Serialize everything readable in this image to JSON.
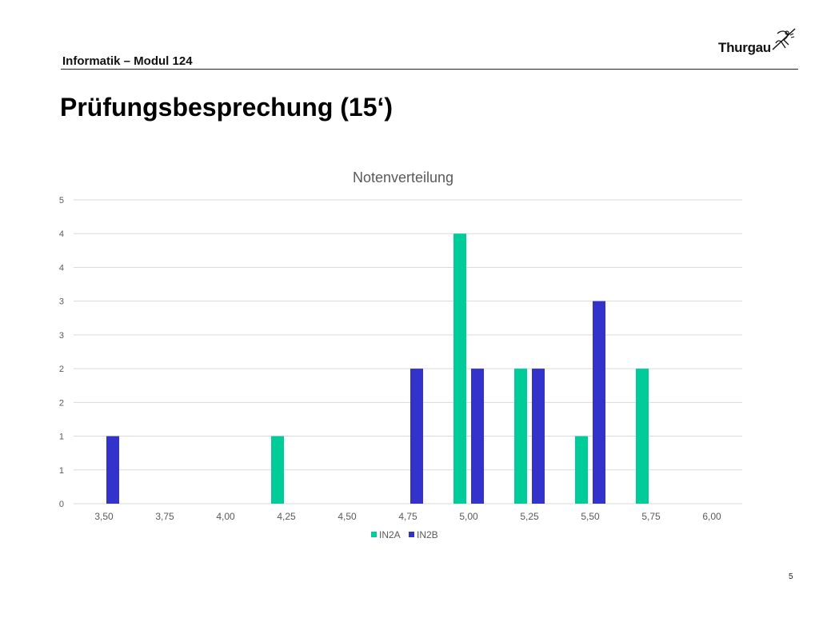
{
  "header": {
    "subtitle": "Informatik – Modul 124",
    "logo_text": "Thurgau"
  },
  "slide": {
    "title": "Prüfungsbesprechung (15‘)",
    "page_number": "5"
  },
  "colors": {
    "IN2A": "#00cc99",
    "IN2B": "#3333cc",
    "grid": "#d9d9d9",
    "axis_text": "#595959"
  },
  "chart_data": {
    "type": "bar",
    "title": "Notenverteilung",
    "xlabel": "",
    "ylabel": "",
    "categories": [
      "3,50",
      "3,75",
      "4,00",
      "4,25",
      "4,50",
      "4,75",
      "5,00",
      "5,25",
      "5,50",
      "5,75",
      "6,00"
    ],
    "series": [
      {
        "name": "IN2A",
        "values": [
          0,
          0,
          0,
          1,
          0,
          0,
          4,
          2,
          1,
          2,
          0
        ]
      },
      {
        "name": "IN2B",
        "values": [
          1,
          0,
          0,
          0,
          0,
          2,
          2,
          2,
          3,
          0,
          0
        ]
      }
    ],
    "ylim": [
      0,
      4.5
    ],
    "y_ticks": [
      0,
      0.5,
      1,
      1.5,
      2,
      2.5,
      3,
      3.5,
      4,
      4.5
    ],
    "y_tick_labels": [
      "0",
      "1",
      "1",
      "2",
      "2",
      "3",
      "3",
      "4",
      "4",
      "5"
    ],
    "grid": true,
    "legend_position": "bottom"
  }
}
